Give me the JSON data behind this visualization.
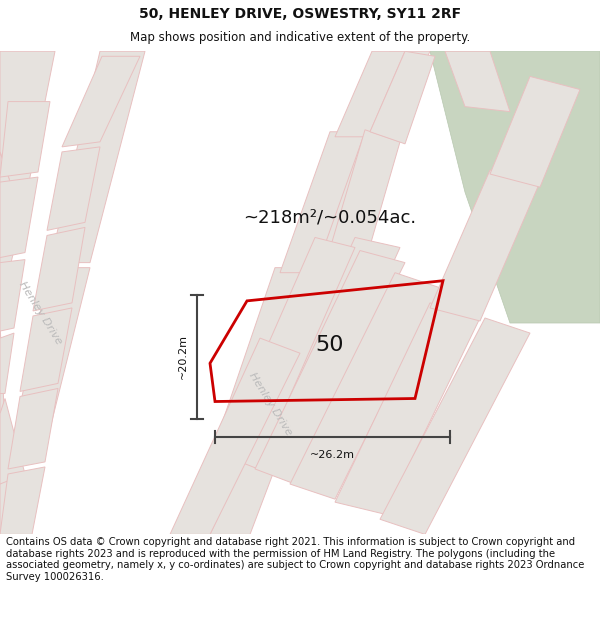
{
  "title": "50, HENLEY DRIVE, OSWESTRY, SY11 2RF",
  "subtitle": "Map shows position and indicative extent of the property.",
  "area_text": "~218m²/~0.054ac.",
  "label_50": "50",
  "dim_vertical": "~20.2m",
  "dim_horizontal": "~26.2m",
  "road_label_left": "Henley Drive",
  "road_label_right": "Henley Drive",
  "copyright_text": "Contains OS data © Crown copyright and database right 2021. This information is subject to Crown copyright and database rights 2023 and is reproduced with the permission of HM Land Registry. The polygons (including the associated geometry, namely x, y co-ordinates) are subject to Crown copyright and database rights 2023 Ordnance Survey 100026316.",
  "map_bg": "#f5f3f1",
  "block_color": "#e6e2de",
  "block_border": "#e8c0c0",
  "road_color": "#ffffff",
  "green_color": "#c8d5c0",
  "green_border": "#b8c8b0",
  "red_color": "#cc0000",
  "dim_color": "#444444",
  "title_fontsize": 10,
  "subtitle_fontsize": 8.5,
  "area_fontsize": 13,
  "label_fontsize": 16,
  "dim_fontsize": 8,
  "road_fontsize": 8,
  "copyright_fontsize": 7.2
}
